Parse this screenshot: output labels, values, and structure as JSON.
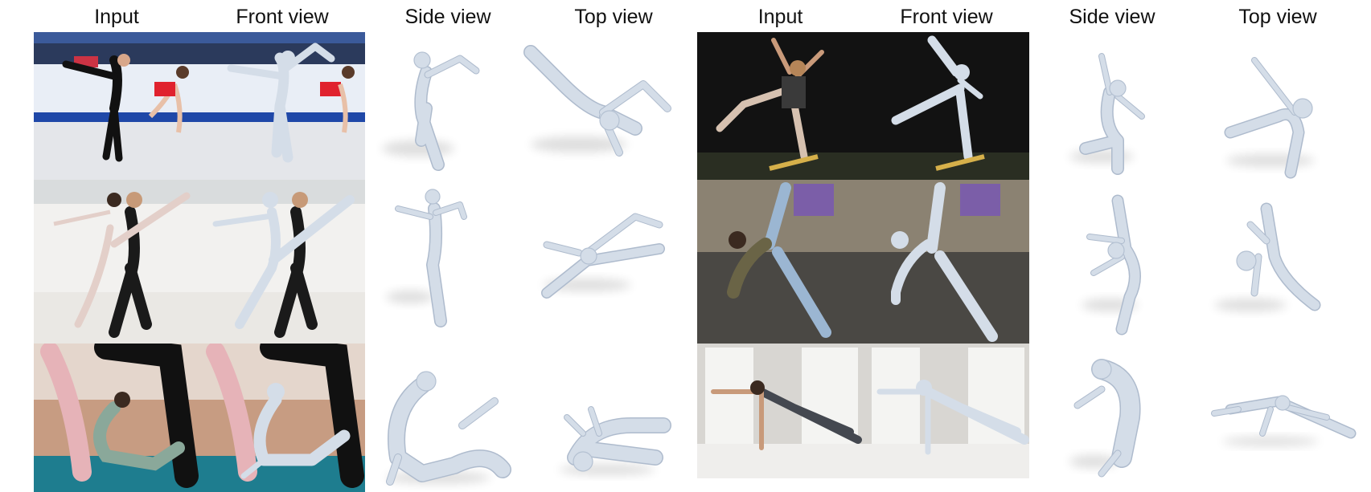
{
  "figure": {
    "left_group": {
      "columns": [
        "Input",
        "Front view",
        "Side view",
        "Top view"
      ]
    },
    "right_group": {
      "columns": [
        "Input",
        "Front view",
        "Side view",
        "Top view"
      ]
    }
  },
  "palette": {
    "mesh": "#d4dde8",
    "mesh_outline": "#aebbcd",
    "shadow": "#000000",
    "background": "#ffffff"
  },
  "rows": [
    {
      "left": "figure-skating-pair",
      "right": "skateboard-jump"
    },
    {
      "left": "ballet-lift-pair",
      "right": "breakdance-freeze"
    },
    {
      "left": "yoga-pair",
      "right": "yoga-side-plank"
    }
  ]
}
